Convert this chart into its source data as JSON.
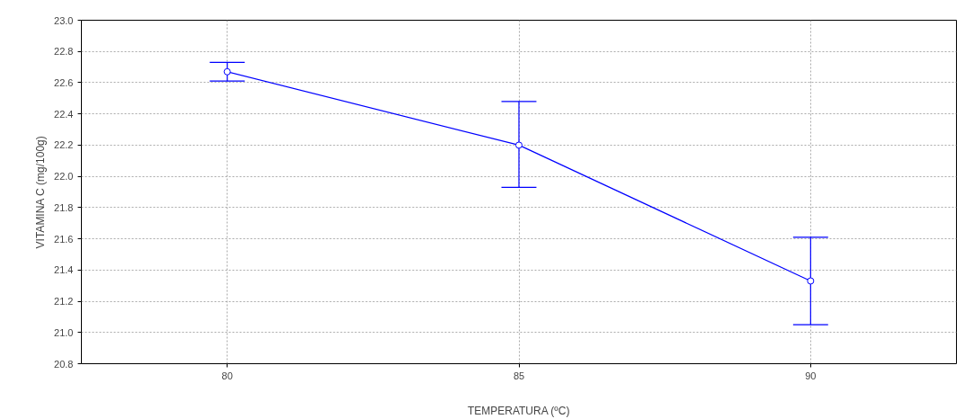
{
  "chart_data": {
    "type": "line",
    "xlabel": "TEMPERATURA (ºC)",
    "ylabel": "VITAMINA C (mg/100g)",
    "x": [
      80,
      85,
      90
    ],
    "series": [
      {
        "color": "#0000ff",
        "values": [
          22.67,
          22.2,
          21.33
        ],
        "errors": [
          [
            22.61,
            22.73
          ],
          [
            21.93,
            22.48
          ],
          [
            21.05,
            21.61
          ]
        ]
      }
    ],
    "xlim": [
      77.5,
      92.5
    ],
    "xticks": [
      80,
      85,
      90
    ],
    "ylim": [
      20.8,
      23.0
    ],
    "yticks": [
      {
        "value": 20.8,
        "label": "20.8"
      },
      {
        "value": 21.0,
        "label": "21.0"
      },
      {
        "value": 21.2,
        "label": "21.2"
      },
      {
        "value": 21.4,
        "label": "21.4"
      },
      {
        "value": 21.6,
        "label": "21.6"
      },
      {
        "value": 21.8,
        "label": "21.8"
      },
      {
        "value": 22.0,
        "label": "22.0"
      },
      {
        "value": 22.2,
        "label": "22.2"
      },
      {
        "value": 22.4,
        "label": "22.4"
      },
      {
        "value": 22.6,
        "label": "22.6"
      },
      {
        "value": 22.8,
        "label": "22.8"
      },
      {
        "value": 23.0,
        "label": "23.0"
      }
    ],
    "grid": true,
    "marker": "circle",
    "line_style": "solid"
  }
}
